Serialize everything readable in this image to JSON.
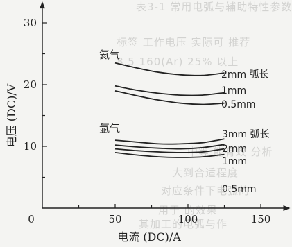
{
  "chart_data": {
    "type": "line",
    "xlabel": "电流 (DC)/A",
    "ylabel": "电压 (DC)/V",
    "xlim": [
      0,
      165
    ],
    "ylim": [
      0,
      31
    ],
    "x_ticks": [
      "0",
      "50",
      "100",
      "150"
    ],
    "y_ticks": [
      "10",
      "20",
      "30"
    ],
    "grid": false,
    "groups": [
      {
        "name": "氦气",
        "series": [
          {
            "name": "2mm 弧长",
            "x": [
              50,
              65,
              80,
              95,
              110,
              125
            ],
            "values": [
              23.5,
              22.7,
              22.0,
              21.6,
              21.5,
              21.9
            ]
          },
          {
            "name": "1mm",
            "x": [
              50,
              65,
              80,
              95,
              110,
              125
            ],
            "values": [
              19.8,
              19.1,
              18.6,
              18.3,
              18.3,
              18.7
            ]
          },
          {
            "name": "0.5mm",
            "x": [
              50,
              65,
              80,
              95,
              110,
              125
            ],
            "values": [
              19.0,
              18.2,
              17.5,
              17.0,
              16.8,
              17.0
            ]
          }
        ]
      },
      {
        "name": "氩气",
        "series": [
          {
            "name": "3mm 弧长",
            "x": [
              50,
              65,
              80,
              95,
              110,
              125
            ],
            "values": [
              11.0,
              10.7,
              10.4,
              10.4,
              10.6,
              11.2
            ]
          },
          {
            "name": "2mm",
            "x": [
              50,
              65,
              80,
              95,
              110,
              125
            ],
            "values": [
              10.2,
              9.9,
              9.7,
              9.6,
              9.8,
              10.3
            ]
          },
          {
            "name": "1mm",
            "x": [
              50,
              65,
              80,
              95,
              110,
              125
            ],
            "values": [
              9.6,
              9.3,
              9.1,
              9.0,
              9.1,
              9.6
            ]
          },
          {
            "name": "0.5mm",
            "x": [
              50,
              65,
              80,
              95,
              110,
              125
            ],
            "values": [
              9.0,
              8.6,
              8.3,
              8.2,
              8.3,
              8.7
            ]
          }
        ]
      }
    ]
  },
  "background_text": [
    "表3-1 常用电弧与辅助特性参数",
    "标签 工作电压 实际可 推荐",
    "8.5 160(Ar) 25% 以上",
    "中等 能有效 分析",
    "大到合适程度",
    "对应条件下电弧的",
    "用于 的效果",
    "其加工的电弧与作"
  ]
}
